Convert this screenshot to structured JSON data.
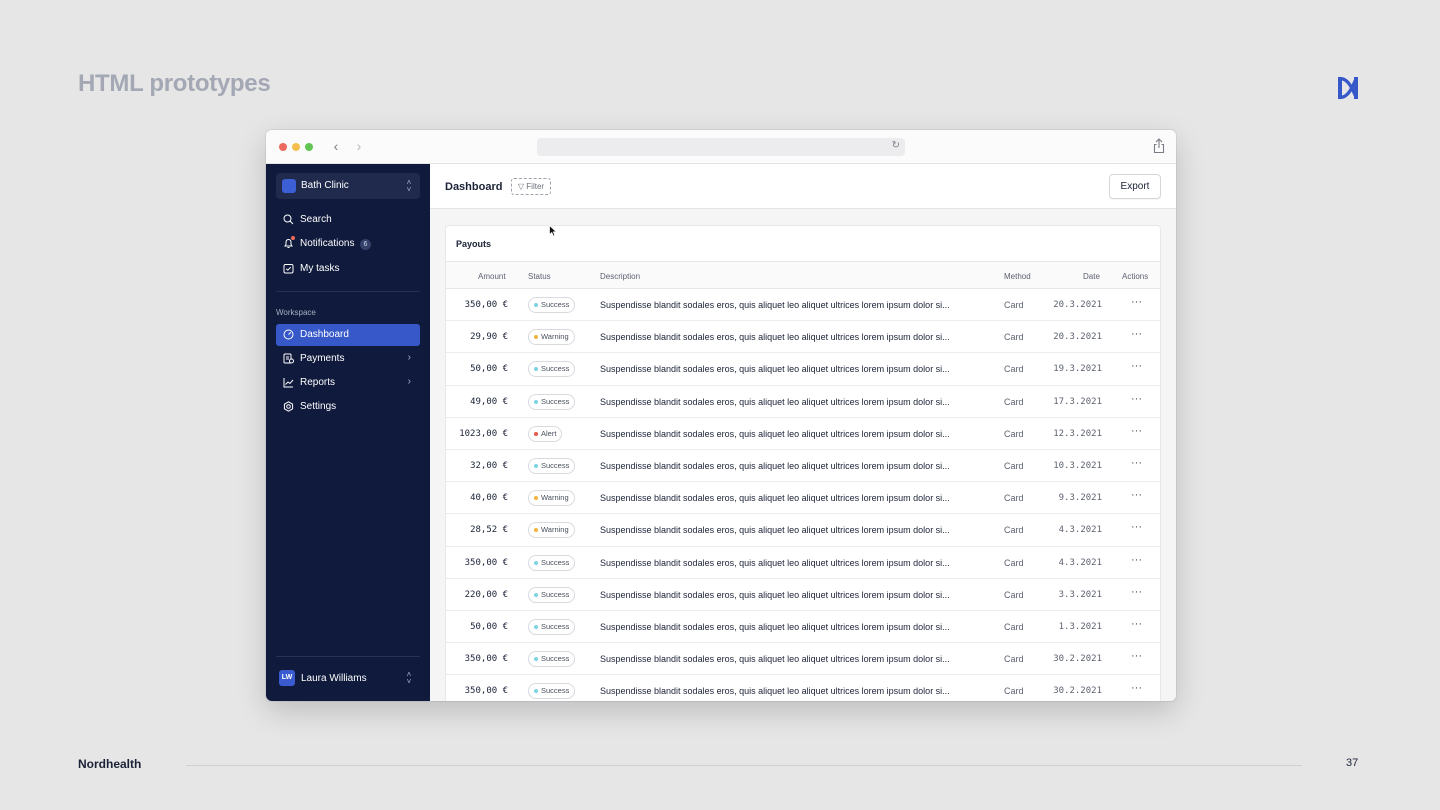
{
  "slide": {
    "title": "HTML prototypes",
    "footer_brand": "Nordhealth",
    "page_number": "37",
    "colors": {
      "background": "#e6e6e7",
      "accent": "#3658c9",
      "sidebar": "#0f1a3c"
    }
  },
  "sidebar": {
    "org_name": "Bath Clinic",
    "top_items": [
      {
        "label": "Search",
        "icon": "search-icon"
      },
      {
        "label": "Notifications",
        "icon": "bell-icon",
        "count": "6"
      },
      {
        "label": "My tasks",
        "icon": "task-icon"
      }
    ],
    "section_label": "Workspace",
    "workspace_items": [
      {
        "label": "Dashboard",
        "icon": "dashboard-icon",
        "active": true
      },
      {
        "label": "Payments",
        "icon": "payments-icon",
        "expandable": true
      },
      {
        "label": "Reports",
        "icon": "chart-icon",
        "expandable": true
      },
      {
        "label": "Settings",
        "icon": "gear-icon"
      }
    ],
    "user": {
      "initials": "LW",
      "name": "Laura Williams"
    }
  },
  "header": {
    "title": "Dashboard",
    "filter_label": "Filter",
    "export_label": "Export"
  },
  "payouts": {
    "title": "Payouts",
    "columns": {
      "amount": "Amount",
      "status": "Status",
      "description": "Description",
      "method": "Method",
      "date": "Date",
      "actions": "Actions"
    },
    "status_colors": {
      "Success": "#7ed3e6",
      "Warning": "#f2b33d",
      "Alert": "#e6584a"
    },
    "rows": [
      {
        "amount": "350,00 €",
        "status": "Success",
        "description": "Suspendisse blandit sodales eros, quis aliquet leo aliquet ultrices lorem ipsum dolor si...",
        "method": "Card",
        "date": "20.3.2021"
      },
      {
        "amount": "29,90 €",
        "status": "Warning",
        "description": "Suspendisse blandit sodales eros, quis aliquet leo aliquet ultrices lorem ipsum dolor si...",
        "method": "Card",
        "date": "20.3.2021"
      },
      {
        "amount": "50,00 €",
        "status": "Success",
        "description": "Suspendisse blandit sodales eros, quis aliquet leo aliquet ultrices lorem ipsum dolor si...",
        "method": "Card",
        "date": "19.3.2021"
      },
      {
        "amount": "49,00 €",
        "status": "Success",
        "description": "Suspendisse blandit sodales eros, quis aliquet leo aliquet ultrices lorem ipsum dolor si...",
        "method": "Card",
        "date": "17.3.2021"
      },
      {
        "amount": "1023,00 €",
        "status": "Alert",
        "description": "Suspendisse blandit sodales eros, quis aliquet leo aliquet ultrices lorem ipsum dolor si...",
        "method": "Card",
        "date": "12.3.2021"
      },
      {
        "amount": "32,00 €",
        "status": "Success",
        "description": "Suspendisse blandit sodales eros, quis aliquet leo aliquet ultrices lorem ipsum dolor si...",
        "method": "Card",
        "date": "10.3.2021"
      },
      {
        "amount": "40,00 €",
        "status": "Warning",
        "description": "Suspendisse blandit sodales eros, quis aliquet leo aliquet ultrices lorem ipsum dolor si...",
        "method": "Card",
        "date": "9.3.2021"
      },
      {
        "amount": "28,52 €",
        "status": "Warning",
        "description": "Suspendisse blandit sodales eros, quis aliquet leo aliquet ultrices lorem ipsum dolor si...",
        "method": "Card",
        "date": "4.3.2021"
      },
      {
        "amount": "350,00 €",
        "status": "Success",
        "description": "Suspendisse blandit sodales eros, quis aliquet leo aliquet ultrices lorem ipsum dolor si...",
        "method": "Card",
        "date": "4.3.2021"
      },
      {
        "amount": "220,00 €",
        "status": "Success",
        "description": "Suspendisse blandit sodales eros, quis aliquet leo aliquet ultrices lorem ipsum dolor si...",
        "method": "Card",
        "date": "3.3.2021"
      },
      {
        "amount": "50,00 €",
        "status": "Success",
        "description": "Suspendisse blandit sodales eros, quis aliquet leo aliquet ultrices lorem ipsum dolor si...",
        "method": "Card",
        "date": "1.3.2021"
      },
      {
        "amount": "350,00 €",
        "status": "Success",
        "description": "Suspendisse blandit sodales eros, quis aliquet leo aliquet ultrices lorem ipsum dolor si...",
        "method": "Card",
        "date": "30.2.2021"
      },
      {
        "amount": "350,00 €",
        "status": "Success",
        "description": "Suspendisse blandit sodales eros, quis aliquet leo aliquet ultrices lorem ipsum dolor si...",
        "method": "Card",
        "date": "30.2.2021"
      }
    ],
    "more_glyph": "···"
  }
}
